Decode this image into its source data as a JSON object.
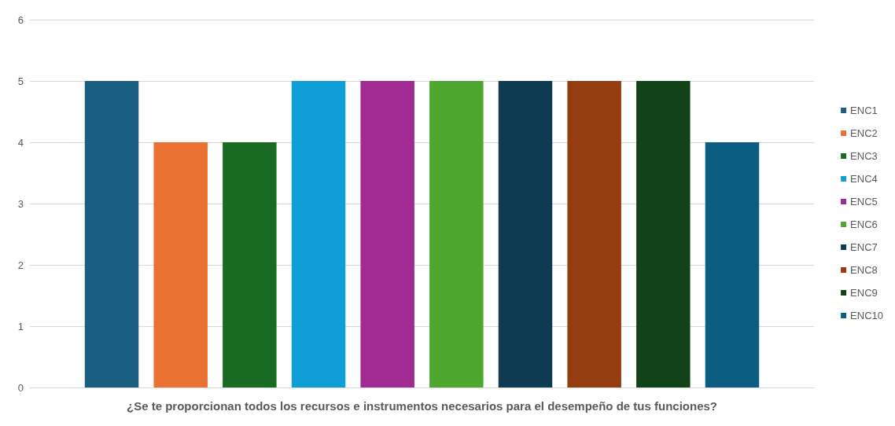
{
  "chart_data": {
    "type": "bar",
    "categories": [
      "¿Se te proporcionan todos los recursos e instrumentos necesarios para el desempeño de tus funciones?"
    ],
    "series": [
      {
        "name": "ENC1",
        "color": "#1a5e82",
        "values": [
          5
        ]
      },
      {
        "name": "ENC2",
        "color": "#e97132",
        "values": [
          4
        ]
      },
      {
        "name": "ENC3",
        "color": "#196b24",
        "values": [
          4
        ]
      },
      {
        "name": "ENC4",
        "color": "#0f9ed5",
        "values": [
          5
        ]
      },
      {
        "name": "ENC5",
        "color": "#a02b93",
        "values": [
          5
        ]
      },
      {
        "name": "ENC6",
        "color": "#4ea72e",
        "values": [
          5
        ]
      },
      {
        "name": "ENC7",
        "color": "#0e3a52",
        "values": [
          5
        ]
      },
      {
        "name": "ENC8",
        "color": "#953c11",
        "values": [
          5
        ]
      },
      {
        "name": "ENC9",
        "color": "#124318",
        "values": [
          5
        ]
      },
      {
        "name": "ENC10",
        "color": "#0b5e81",
        "values": [
          4
        ]
      }
    ],
    "ylim": [
      0,
      6
    ],
    "yticks": [
      0,
      1,
      2,
      3,
      4,
      5,
      6
    ],
    "grid": "y",
    "legend": "right"
  }
}
